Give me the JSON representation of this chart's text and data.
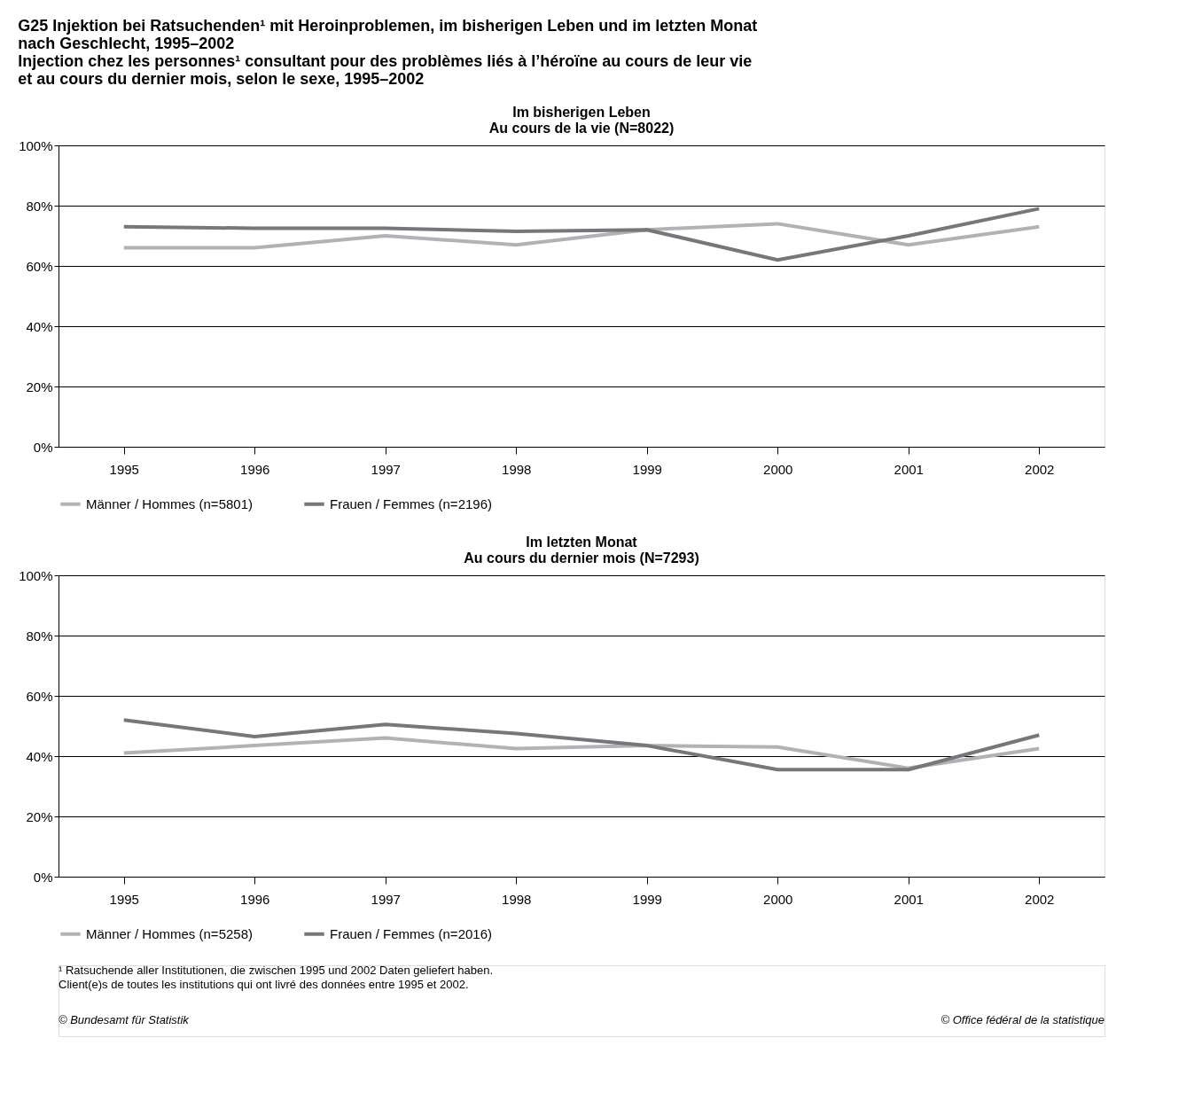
{
  "chart_data": [
    {
      "type": "line",
      "title": "G25 Injektion bei Ratsuchenden¹ mit Heroinproblemen, im bisherigen Leben und im letzten Monat\nnach Geschlecht, 1995–2002\nInjection chez les personnes¹ consultant pour des problèmes liés à l’héroïne au cours de leur vie\net au cours du dernier mois, selon le sexe, 1995–2002",
      "subtitle": "Im bisherigen Leben\nAu cours de la vie (N=8022)",
      "categories": [
        "1995",
        "1996",
        "1997",
        "1998",
        "1999",
        "2000",
        "2001",
        "2002"
      ],
      "series": [
        {
          "name": "Männer / Hommes (n=5801)",
          "color": "#b2b1b5",
          "values": [
            66,
            66,
            70,
            67,
            72,
            74,
            67,
            73
          ]
        },
        {
          "name": "Frauen / Femmes (n=2196)",
          "color": "#77767b",
          "values": [
            73,
            72.5,
            72.5,
            71.5,
            72,
            62,
            70,
            79
          ]
        }
      ],
      "ylim": [
        0,
        100
      ],
      "yticks": [
        {
          "value": 0,
          "label": "0%"
        },
        {
          "value": 20,
          "label": "20%"
        },
        {
          "value": 40,
          "label": "40%"
        },
        {
          "value": 60,
          "label": "60%"
        },
        {
          "value": 80,
          "label": "80%"
        },
        {
          "value": 100,
          "label": "100%"
        }
      ],
      "grid": "y",
      "legend": "bottom",
      "line_style": "solid"
    },
    {
      "type": "line",
      "title": "Im letzten Monat\nAu cours du dernier mois (N=7293)",
      "categories": [
        "1995",
        "1996",
        "1997",
        "1998",
        "1999",
        "2000",
        "2001",
        "2002"
      ],
      "series": [
        {
          "name": "Männer / Hommes (n=5258)",
          "color": "#b2b1b5",
          "values": [
            41,
            43.5,
            46,
            42.5,
            43.5,
            43,
            36,
            42.5
          ]
        },
        {
          "name": "Frauen / Femmes (n=2016)",
          "color": "#77767b",
          "values": [
            52,
            46.5,
            50.5,
            47.5,
            43.5,
            35.5,
            35.5,
            47
          ]
        }
      ],
      "ylim": [
        0,
        100
      ],
      "yticks": [
        {
          "value": 0,
          "label": "0%"
        },
        {
          "value": 20,
          "label": "20%"
        },
        {
          "value": 40,
          "label": "40%"
        },
        {
          "value": 60,
          "label": "60%"
        },
        {
          "value": 80,
          "label": "80%"
        },
        {
          "value": 100,
          "label": "100%"
        }
      ],
      "grid": "y",
      "legend": "bottom",
      "line_style": "solid",
      "annotations": [
        "¹ Ratsuchende aller Institutionen, die zwischen 1995 und 2002 Daten geliefert haben.",
        "  Client(e)s de toutes les institutions qui ont livré des données entre 1995 et 2002.",
        "© Bundesamt für Statistik",
        "© Office fédéral de la statistique"
      ]
    }
  ]
}
